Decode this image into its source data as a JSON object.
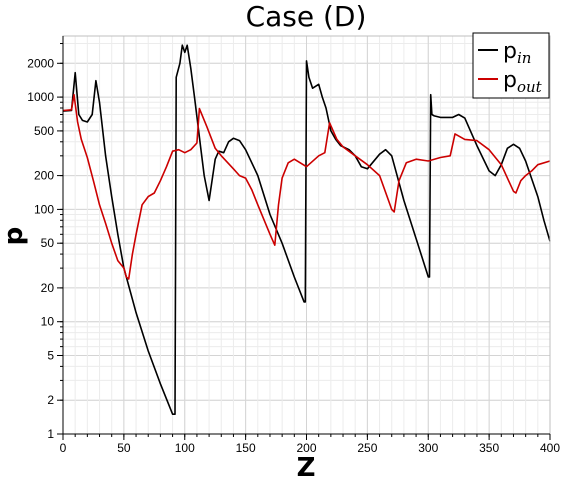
{
  "chart_data": {
    "type": "line",
    "title": "Case (D)",
    "xlabel": "Z",
    "ylabel": "p",
    "xlim": [
      0,
      400
    ],
    "ylim": [
      1,
      3500
    ],
    "yscale": "log",
    "grid": true,
    "legend_position": "top-right",
    "x_ticks": [
      0,
      50,
      100,
      150,
      200,
      250,
      300,
      350,
      400
    ],
    "y_ticks": [
      1,
      2,
      5,
      10,
      20,
      50,
      100,
      200,
      500,
      1000,
      2000
    ],
    "series": [
      {
        "name": "p",
        "subscript": "in",
        "color": "#000000",
        "points": [
          [
            0,
            750
          ],
          [
            7,
            760
          ],
          [
            10,
            1650
          ],
          [
            13,
            700
          ],
          [
            16,
            620
          ],
          [
            20,
            600
          ],
          [
            24,
            700
          ],
          [
            27,
            1400
          ],
          [
            30,
            900
          ],
          [
            35,
            300
          ],
          [
            40,
            130
          ],
          [
            45,
            60
          ],
          [
            50,
            30
          ],
          [
            60,
            12
          ],
          [
            70,
            5.5
          ],
          [
            80,
            2.8
          ],
          [
            90,
            1.5
          ],
          [
            92,
            1.5
          ],
          [
            93,
            1500
          ],
          [
            96,
            2000
          ],
          [
            98,
            2900
          ],
          [
            100,
            2500
          ],
          [
            102,
            2900
          ],
          [
            105,
            1800
          ],
          [
            108,
            1000
          ],
          [
            111,
            550
          ],
          [
            113,
            360
          ],
          [
            116,
            200
          ],
          [
            120,
            120
          ],
          [
            125,
            280
          ],
          [
            128,
            330
          ],
          [
            132,
            320
          ],
          [
            136,
            400
          ],
          [
            140,
            430
          ],
          [
            145,
            410
          ],
          [
            150,
            340
          ],
          [
            160,
            200
          ],
          [
            170,
            90
          ],
          [
            180,
            50
          ],
          [
            190,
            25
          ],
          [
            198,
            15
          ],
          [
            199,
            15
          ],
          [
            200,
            2100
          ],
          [
            202,
            1500
          ],
          [
            205,
            1200
          ],
          [
            210,
            1300
          ],
          [
            213,
            1000
          ],
          [
            216,
            800
          ],
          [
            220,
            500
          ],
          [
            224,
            420
          ],
          [
            228,
            370
          ],
          [
            235,
            340
          ],
          [
            240,
            300
          ],
          [
            245,
            240
          ],
          [
            250,
            230
          ],
          [
            260,
            310
          ],
          [
            265,
            340
          ],
          [
            270,
            300
          ],
          [
            280,
            120
          ],
          [
            290,
            55
          ],
          [
            300,
            25
          ],
          [
            301,
            25
          ],
          [
            302,
            1050
          ],
          [
            303,
            700
          ],
          [
            305,
            680
          ],
          [
            310,
            660
          ],
          [
            320,
            660
          ],
          [
            325,
            700
          ],
          [
            330,
            650
          ],
          [
            340,
            370
          ],
          [
            350,
            220
          ],
          [
            355,
            200
          ],
          [
            360,
            250
          ],
          [
            365,
            350
          ],
          [
            370,
            380
          ],
          [
            375,
            350
          ],
          [
            380,
            270
          ],
          [
            390,
            130
          ],
          [
            395,
            80
          ],
          [
            400,
            52
          ]
        ]
      },
      {
        "name": "p",
        "subscript": "out",
        "color": "#cc0000",
        "points": [
          [
            0,
            760
          ],
          [
            7,
            770
          ],
          [
            9,
            1050
          ],
          [
            12,
            600
          ],
          [
            15,
            420
          ],
          [
            20,
            290
          ],
          [
            25,
            180
          ],
          [
            30,
            110
          ],
          [
            35,
            75
          ],
          [
            40,
            50
          ],
          [
            45,
            35
          ],
          [
            50,
            30
          ],
          [
            52,
            25
          ],
          [
            54,
            24
          ],
          [
            57,
            40
          ],
          [
            60,
            60
          ],
          [
            65,
            110
          ],
          [
            70,
            130
          ],
          [
            75,
            140
          ],
          [
            80,
            180
          ],
          [
            85,
            240
          ],
          [
            90,
            330
          ],
          [
            95,
            340
          ],
          [
            100,
            320
          ],
          [
            105,
            340
          ],
          [
            110,
            390
          ],
          [
            112,
            790
          ],
          [
            118,
            550
          ],
          [
            125,
            350
          ],
          [
            130,
            300
          ],
          [
            140,
            230
          ],
          [
            145,
            200
          ],
          [
            150,
            190
          ],
          [
            155,
            150
          ],
          [
            160,
            110
          ],
          [
            170,
            60
          ],
          [
            174,
            48
          ],
          [
            177,
            110
          ],
          [
            180,
            190
          ],
          [
            185,
            260
          ],
          [
            190,
            280
          ],
          [
            200,
            240
          ],
          [
            210,
            300
          ],
          [
            215,
            320
          ],
          [
            219,
            590
          ],
          [
            225,
            420
          ],
          [
            230,
            360
          ],
          [
            240,
            300
          ],
          [
            250,
            250
          ],
          [
            260,
            200
          ],
          [
            270,
            100
          ],
          [
            272,
            95
          ],
          [
            276,
            180
          ],
          [
            282,
            260
          ],
          [
            290,
            280
          ],
          [
            300,
            270
          ],
          [
            310,
            290
          ],
          [
            318,
            300
          ],
          [
            322,
            470
          ],
          [
            330,
            420
          ],
          [
            340,
            410
          ],
          [
            350,
            340
          ],
          [
            360,
            250
          ],
          [
            366,
            180
          ],
          [
            370,
            145
          ],
          [
            372,
            140
          ],
          [
            376,
            180
          ],
          [
            380,
            200
          ],
          [
            385,
            220
          ],
          [
            390,
            250
          ],
          [
            400,
            270
          ]
        ]
      }
    ]
  }
}
